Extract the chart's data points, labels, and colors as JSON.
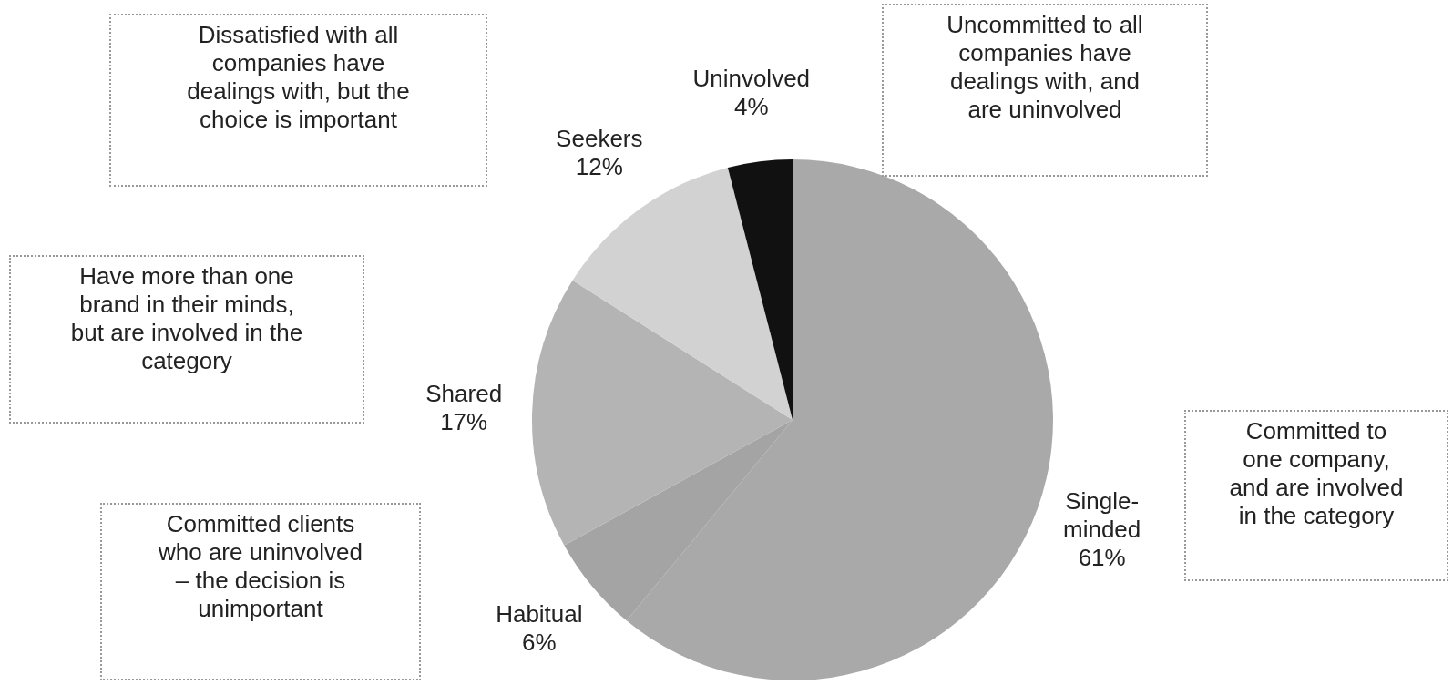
{
  "chart_data": {
    "type": "pie",
    "categories": [
      "Single-\nminded",
      "Habitual",
      "Shared",
      "Seekers",
      "Uninvolved"
    ],
    "values": [
      61,
      6,
      17,
      12,
      4
    ],
    "value_labels": [
      "61%",
      "6%",
      "17%",
      "12%",
      "4%"
    ],
    "colors": [
      "#a9a9a9",
      "#a4a4a4",
      "#b4b4b4",
      "#d2d2d2",
      "#111111"
    ],
    "legend": false,
    "annotations": [
      "Dissatisfied with all\ncompanies have\ndealings with, but the\nchoice is important",
      "Uncommitted to all\ncompanies have\ndealings with, and\nare uninvolved",
      "Have more than one\nbrand in their minds,\nbut are involved in the\ncategory",
      "Committed to\none company,\nand are involved\nin the category",
      "Committed clients\nwho are uninvolved\n– the decision is\nunimportant"
    ]
  }
}
